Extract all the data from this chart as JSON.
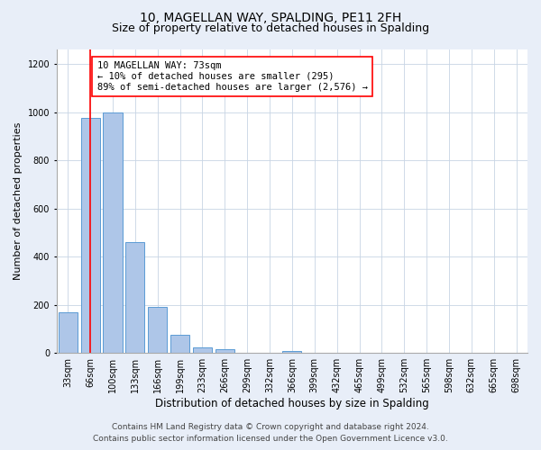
{
  "title": "10, MAGELLAN WAY, SPALDING, PE11 2FH",
  "subtitle": "Size of property relative to detached houses in Spalding",
  "xlabel": "Distribution of detached houses by size in Spalding",
  "ylabel": "Number of detached properties",
  "bar_labels": [
    "33sqm",
    "66sqm",
    "100sqm",
    "133sqm",
    "166sqm",
    "199sqm",
    "233sqm",
    "266sqm",
    "299sqm",
    "332sqm",
    "366sqm",
    "399sqm",
    "432sqm",
    "465sqm",
    "499sqm",
    "532sqm",
    "565sqm",
    "598sqm",
    "632sqm",
    "665sqm",
    "698sqm"
  ],
  "bar_values": [
    170,
    975,
    1000,
    460,
    190,
    75,
    25,
    15,
    0,
    0,
    10,
    0,
    0,
    0,
    0,
    0,
    0,
    0,
    0,
    0,
    0
  ],
  "bar_color": "#aec6e8",
  "bar_edge_color": "#5b9bd5",
  "vline_x": 1.0,
  "annotation_line1": "10 MAGELLAN WAY: 73sqm",
  "annotation_line2": "← 10% of detached houses are smaller (295)",
  "annotation_line3": "89% of semi-detached houses are larger (2,576) →",
  "annotation_box_color": "white",
  "annotation_box_edge_color": "red",
  "vline_color": "red",
  "ylim": [
    0,
    1260
  ],
  "yticks": [
    0,
    200,
    400,
    600,
    800,
    1000,
    1200
  ],
  "footer_line1": "Contains HM Land Registry data © Crown copyright and database right 2024.",
  "footer_line2": "Contains public sector information licensed under the Open Government Licence v3.0.",
  "background_color": "#e8eef8",
  "plot_background_color": "white",
  "title_fontsize": 10,
  "subtitle_fontsize": 9,
  "xlabel_fontsize": 8.5,
  "ylabel_fontsize": 8,
  "tick_fontsize": 7,
  "annotation_fontsize": 7.5,
  "footer_fontsize": 6.5
}
